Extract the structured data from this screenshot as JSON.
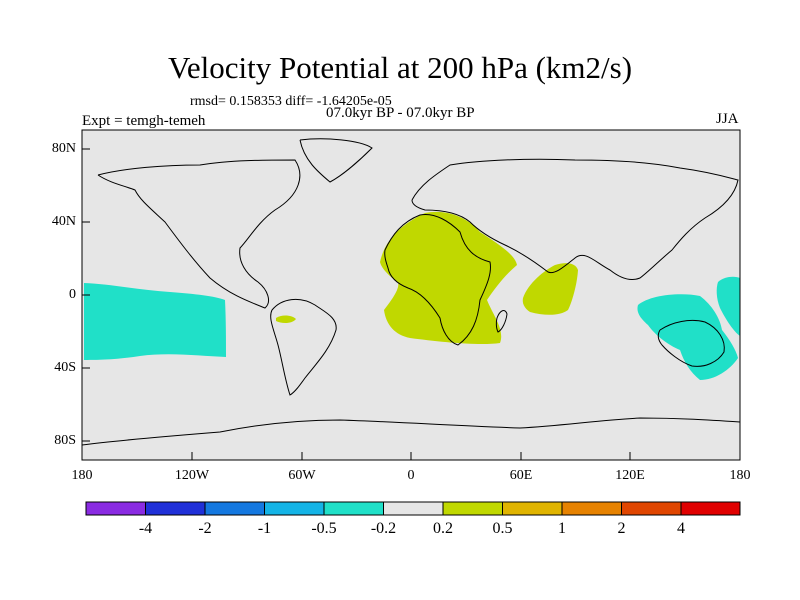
{
  "title": "Velocity Potential at 200 hPa (km2/s)",
  "stats": "rmsd= 0.158353 diff= -1.64205e-05",
  "experiment": "Expt = temgh-temeh",
  "period": "07.0kyr BP - 07.0kyr BP",
  "season": "JJA",
  "colors": {
    "ocean_land_background": "#e6e6e6",
    "positive_fill": "#c0d800",
    "negative_fill": "#20e0c8",
    "coastline": "#000000"
  },
  "lat_ticks": [
    "80N",
    "40N",
    "0",
    "40S",
    "80S"
  ],
  "lon_ticks": [
    "180",
    "120W",
    "60W",
    "0",
    "60E",
    "120E",
    "180"
  ],
  "colorbar": {
    "colors": [
      "#8a2be2",
      "#2030d8",
      "#1478e0",
      "#14b4e6",
      "#20e0c8",
      "#e6e6e6",
      "#c0d800",
      "#e0b400",
      "#e68200",
      "#e04600",
      "#e00000"
    ],
    "labels": [
      "-4",
      "-2",
      "-1",
      "-0.5",
      "-0.2",
      "0.2",
      "0.5",
      "1",
      "2",
      "4"
    ]
  },
  "regions": [
    {
      "name": "pacific-negative-anomaly",
      "level": "-0.2 to -0.5"
    },
    {
      "name": "africa-positive-anomaly",
      "level": "0.2 to 0.5"
    },
    {
      "name": "indian-ocean-positive-anomaly",
      "level": "0.2 to 0.5"
    },
    {
      "name": "amazon-positive-anomaly",
      "level": "0.2 to 0.5"
    },
    {
      "name": "maritime-continent-negative-anomaly",
      "level": "-0.2 to -0.5"
    },
    {
      "name": "west-pacific-negative-anomaly",
      "level": "-0.2 to -0.5"
    }
  ]
}
